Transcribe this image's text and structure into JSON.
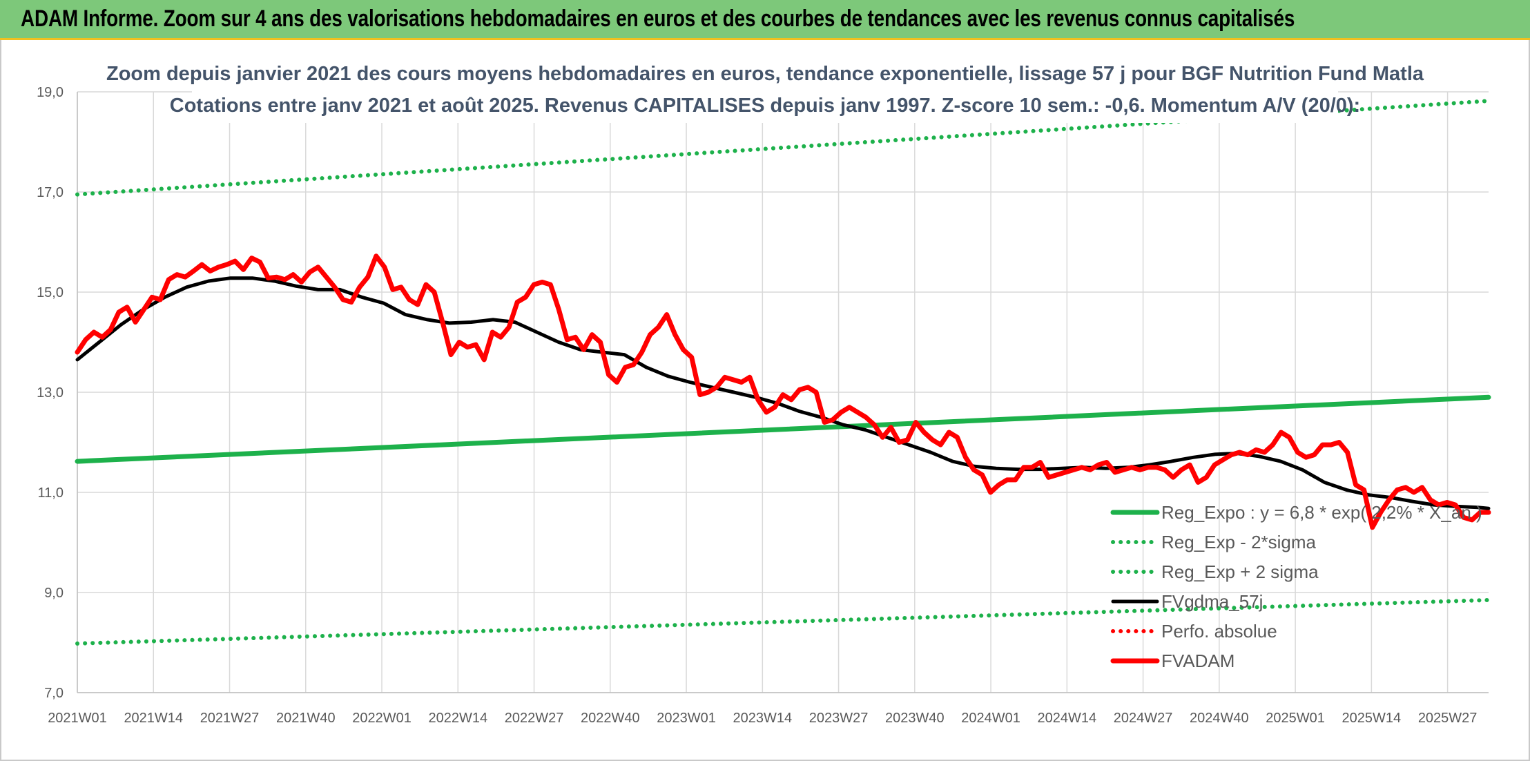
{
  "window": {
    "title": "ADAM Informe. Zoom sur 4 ans des valorisations hebdomadaires en euros et des courbes de tendances avec les revenus connus capitalisés"
  },
  "colors": {
    "banner": "#7dc87a",
    "banner_border": "#f0c020",
    "reg_expo": "#1db14b",
    "reg_band": "#1db14b",
    "fvgdma": "#000000",
    "perfo": "#ff0000",
    "fvadam": "#ff0000",
    "grid": "#d9d9d9",
    "subtitle": "#44546a"
  },
  "chart_data": {
    "type": "line",
    "title_lines": [
      "Zoom depuis janvier 2021 des cours moyens hebdomadaires en euros, tendance exponentielle, lissage 57 j pour BGF Nutrition Fund Matla",
      "Cotations entre janv 2021 et août 2025. Revenus CAPITALISES depuis janv 1997. Z-score 10 sem.: -0,6. Momentum A/V (20/0):"
    ],
    "ylim": [
      7.0,
      19.0
    ],
    "yticks": [
      "7,0",
      "9,0",
      "11,0",
      "13,0",
      "15,0",
      "17,0",
      "19,0"
    ],
    "ytick_values": [
      7,
      9,
      11,
      13,
      15,
      17,
      19
    ],
    "x_count": 242,
    "xtick_labels": [
      "2021W01",
      "2021W14",
      "2021W27",
      "2021W40",
      "2022W01",
      "2022W14",
      "2022W27",
      "2022W40",
      "2023W01",
      "2023W14",
      "2023W27",
      "2023W40",
      "2024W01",
      "2024W14",
      "2024W27",
      "2024W40",
      "2025W01",
      "2025W14",
      "2025W27"
    ],
    "xtick_index": [
      0,
      13,
      26,
      39,
      52,
      65,
      78,
      91,
      104,
      117,
      130,
      143,
      156,
      169,
      182,
      195,
      208,
      221,
      234
    ],
    "grid": true,
    "legend_position": "bottom-right",
    "series": [
      {
        "name": "Reg_Expo : y = 6,8 * exp( 2,2% *  X_an )",
        "style": "solid-thick",
        "color": "#1db14b",
        "points": [
          [
            0,
            11.62
          ],
          [
            241,
            12.9
          ]
        ]
      },
      {
        "name": "Reg_Exp - 2*sigma",
        "style": "dotted",
        "color": "#1db14b",
        "points": [
          [
            0,
            7.98
          ],
          [
            241,
            8.85
          ]
        ]
      },
      {
        "name": "Reg_Exp + 2 sigma",
        "style": "dotted",
        "color": "#1db14b",
        "points": [
          [
            0,
            16.95
          ],
          [
            241,
            18.82
          ]
        ]
      },
      {
        "name": "FVgdma_57j",
        "style": "solid",
        "color": "#000000",
        "points": [
          [
            0,
            13.65
          ],
          [
            4,
            14.0
          ],
          [
            8,
            14.35
          ],
          [
            12,
            14.65
          ],
          [
            16,
            14.9
          ],
          [
            20,
            15.1
          ],
          [
            24,
            15.22
          ],
          [
            28,
            15.28
          ],
          [
            32,
            15.28
          ],
          [
            36,
            15.22
          ],
          [
            40,
            15.12
          ],
          [
            44,
            15.05
          ],
          [
            48,
            15.05
          ],
          [
            52,
            14.9
          ],
          [
            56,
            14.78
          ],
          [
            60,
            14.55
          ],
          [
            64,
            14.45
          ],
          [
            68,
            14.38
          ],
          [
            72,
            14.4
          ],
          [
            76,
            14.45
          ],
          [
            80,
            14.4
          ],
          [
            84,
            14.2
          ],
          [
            88,
            14.0
          ],
          [
            92,
            13.85
          ],
          [
            96,
            13.8
          ],
          [
            100,
            13.75
          ],
          [
            104,
            13.5
          ],
          [
            108,
            13.32
          ],
          [
            112,
            13.2
          ],
          [
            116,
            13.1
          ],
          [
            120,
            13.0
          ],
          [
            124,
            12.9
          ],
          [
            128,
            12.78
          ],
          [
            132,
            12.62
          ],
          [
            136,
            12.5
          ],
          [
            140,
            12.35
          ],
          [
            144,
            12.25
          ],
          [
            148,
            12.1
          ],
          [
            152,
            11.95
          ],
          [
            156,
            11.8
          ],
          [
            160,
            11.62
          ],
          [
            164,
            11.52
          ],
          [
            168,
            11.48
          ],
          [
            172,
            11.46
          ],
          [
            176,
            11.46
          ],
          [
            180,
            11.48
          ],
          [
            184,
            11.5
          ],
          [
            188,
            11.48
          ],
          [
            192,
            11.5
          ],
          [
            196,
            11.55
          ],
          [
            200,
            11.62
          ],
          [
            204,
            11.7
          ],
          [
            208,
            11.76
          ],
          [
            212,
            11.78
          ],
          [
            216,
            11.72
          ],
          [
            220,
            11.62
          ],
          [
            224,
            11.45
          ],
          [
            228,
            11.2
          ],
          [
            232,
            11.05
          ],
          [
            236,
            10.95
          ],
          [
            240,
            10.9
          ],
          [
            244,
            10.82
          ],
          [
            248,
            10.75
          ],
          [
            252,
            10.72
          ],
          [
            256,
            10.7
          ],
          [
            258,
            10.68
          ]
        ]
      },
      {
        "name": "Perfo. absolue",
        "style": "dotted",
        "color": "#ff0000",
        "points": []
      },
      {
        "name": "FVADAM",
        "style": "solid-thick",
        "color": "#ff0000",
        "points": [
          [
            0,
            13.8
          ],
          [
            2,
            14.05
          ],
          [
            4,
            14.2
          ],
          [
            6,
            14.1
          ],
          [
            8,
            14.25
          ],
          [
            10,
            14.6
          ],
          [
            12,
            14.7
          ],
          [
            14,
            14.4
          ],
          [
            16,
            14.65
          ],
          [
            18,
            14.9
          ],
          [
            20,
            14.85
          ],
          [
            22,
            15.25
          ],
          [
            24,
            15.35
          ],
          [
            26,
            15.3
          ],
          [
            28,
            15.42
          ],
          [
            30,
            15.55
          ],
          [
            32,
            15.42
          ],
          [
            34,
            15.5
          ],
          [
            36,
            15.55
          ],
          [
            38,
            15.62
          ],
          [
            40,
            15.45
          ],
          [
            42,
            15.68
          ],
          [
            44,
            15.6
          ],
          [
            46,
            15.28
          ],
          [
            48,
            15.3
          ],
          [
            50,
            15.25
          ],
          [
            52,
            15.35
          ],
          [
            54,
            15.2
          ],
          [
            56,
            15.4
          ],
          [
            58,
            15.5
          ],
          [
            60,
            15.3
          ],
          [
            62,
            15.1
          ],
          [
            64,
            14.85
          ],
          [
            66,
            14.8
          ],
          [
            68,
            15.1
          ],
          [
            70,
            15.3
          ],
          [
            72,
            15.72
          ],
          [
            74,
            15.5
          ],
          [
            76,
            15.05
          ],
          [
            78,
            15.1
          ],
          [
            80,
            14.85
          ],
          [
            82,
            14.75
          ],
          [
            84,
            15.15
          ],
          [
            86,
            15.0
          ],
          [
            88,
            14.4
          ],
          [
            90,
            13.75
          ],
          [
            92,
            14.0
          ],
          [
            94,
            13.9
          ],
          [
            96,
            13.95
          ],
          [
            98,
            13.65
          ],
          [
            100,
            14.2
          ],
          [
            102,
            14.1
          ],
          [
            104,
            14.3
          ],
          [
            106,
            14.8
          ],
          [
            108,
            14.9
          ],
          [
            110,
            15.15
          ],
          [
            112,
            15.2
          ],
          [
            114,
            15.15
          ],
          [
            116,
            14.65
          ],
          [
            118,
            14.05
          ],
          [
            120,
            14.1
          ],
          [
            122,
            13.85
          ],
          [
            124,
            14.15
          ],
          [
            126,
            14.0
          ],
          [
            128,
            13.35
          ],
          [
            130,
            13.2
          ],
          [
            132,
            13.5
          ],
          [
            134,
            13.55
          ],
          [
            136,
            13.8
          ],
          [
            138,
            14.15
          ],
          [
            140,
            14.3
          ],
          [
            142,
            14.55
          ],
          [
            144,
            14.15
          ],
          [
            146,
            13.85
          ],
          [
            148,
            13.7
          ],
          [
            150,
            12.95
          ],
          [
            152,
            13.0
          ],
          [
            154,
            13.1
          ],
          [
            156,
            13.3
          ],
          [
            158,
            13.25
          ],
          [
            160,
            13.2
          ],
          [
            162,
            13.3
          ],
          [
            164,
            12.85
          ],
          [
            166,
            12.6
          ],
          [
            168,
            12.7
          ],
          [
            170,
            12.95
          ],
          [
            172,
            12.85
          ],
          [
            174,
            13.05
          ],
          [
            176,
            13.1
          ],
          [
            178,
            13.0
          ],
          [
            180,
            12.4
          ],
          [
            182,
            12.45
          ],
          [
            184,
            12.6
          ],
          [
            186,
            12.7
          ],
          [
            188,
            12.6
          ],
          [
            190,
            12.5
          ],
          [
            192,
            12.35
          ],
          [
            194,
            12.1
          ],
          [
            196,
            12.3
          ],
          [
            198,
            12.0
          ],
          [
            200,
            12.05
          ],
          [
            202,
            12.4
          ],
          [
            204,
            12.2
          ],
          [
            206,
            12.05
          ],
          [
            208,
            11.95
          ],
          [
            210,
            12.2
          ],
          [
            212,
            12.1
          ],
          [
            214,
            11.7
          ],
          [
            216,
            11.45
          ],
          [
            218,
            11.35
          ],
          [
            220,
            11.0
          ],
          [
            222,
            11.15
          ],
          [
            224,
            11.25
          ],
          [
            226,
            11.25
          ],
          [
            228,
            11.5
          ],
          [
            230,
            11.5
          ],
          [
            232,
            11.6
          ],
          [
            234,
            11.3
          ],
          [
            236,
            11.35
          ],
          [
            238,
            11.4
          ],
          [
            240,
            11.45
          ],
          [
            242,
            11.5
          ],
          [
            244,
            11.45
          ],
          [
            246,
            11.55
          ],
          [
            248,
            11.6
          ],
          [
            250,
            11.4
          ],
          [
            252,
            11.45
          ],
          [
            254,
            11.5
          ],
          [
            256,
            11.45
          ],
          [
            258,
            11.5
          ],
          [
            260,
            11.5
          ],
          [
            262,
            11.45
          ],
          [
            264,
            11.3
          ],
          [
            266,
            11.45
          ],
          [
            268,
            11.55
          ],
          [
            270,
            11.2
          ],
          [
            272,
            11.3
          ],
          [
            274,
            11.55
          ],
          [
            276,
            11.65
          ],
          [
            278,
            11.75
          ],
          [
            280,
            11.8
          ],
          [
            282,
            11.75
          ],
          [
            284,
            11.85
          ],
          [
            286,
            11.8
          ],
          [
            288,
            11.95
          ],
          [
            290,
            12.2
          ],
          [
            292,
            12.1
          ],
          [
            294,
            11.8
          ],
          [
            296,
            11.7
          ],
          [
            298,
            11.75
          ],
          [
            300,
            11.95
          ],
          [
            302,
            11.95
          ],
          [
            304,
            12.0
          ],
          [
            306,
            11.8
          ],
          [
            308,
            11.15
          ],
          [
            310,
            11.05
          ],
          [
            312,
            10.3
          ],
          [
            314,
            10.6
          ],
          [
            316,
            10.85
          ],
          [
            318,
            11.05
          ],
          [
            320,
            11.1
          ],
          [
            322,
            11.0
          ],
          [
            324,
            11.1
          ],
          [
            326,
            10.85
          ],
          [
            328,
            10.75
          ],
          [
            330,
            10.8
          ],
          [
            332,
            10.75
          ],
          [
            334,
            10.5
          ],
          [
            336,
            10.45
          ],
          [
            338,
            10.6
          ],
          [
            340,
            10.6
          ]
        ]
      }
    ]
  }
}
